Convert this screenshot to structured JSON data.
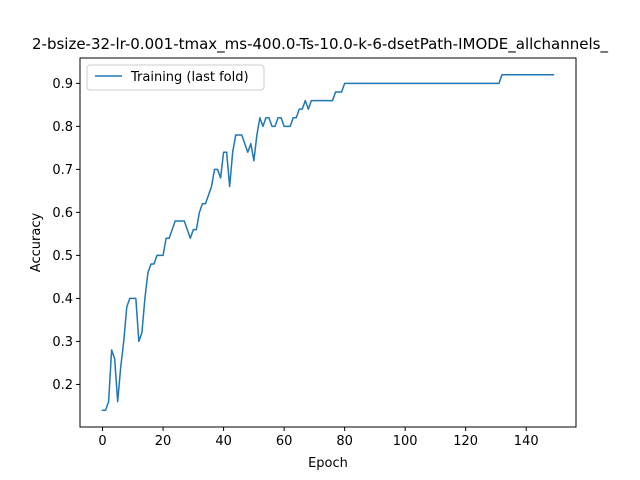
{
  "chart_data": {
    "type": "line",
    "title": "2-bsize-32-lr-0.001-tmax_ms-400.0-Ts-10.0-k-6-dsetPath-IMODE_allchannels_",
    "xlabel": "Epoch",
    "ylabel": "Accuracy",
    "xlim": [
      -7.45,
      156.45
    ],
    "ylim": [
      0.101,
      0.959
    ],
    "xticks": [
      0,
      20,
      40,
      60,
      80,
      100,
      120,
      140
    ],
    "yticks": [
      0.2,
      0.3,
      0.4,
      0.5,
      0.6,
      0.7,
      0.8,
      0.9
    ],
    "grid": false,
    "legend_position": "upper-left",
    "series": [
      {
        "name": "Training (last fold)",
        "color": "#1f77b4",
        "x": [
          0,
          1,
          2,
          3,
          4,
          5,
          6,
          7,
          8,
          9,
          10,
          11,
          12,
          13,
          14,
          15,
          16,
          17,
          18,
          19,
          20,
          21,
          22,
          23,
          24,
          25,
          26,
          27,
          28,
          29,
          30,
          31,
          32,
          33,
          34,
          35,
          36,
          37,
          38,
          39,
          40,
          41,
          42,
          43,
          44,
          45,
          46,
          47,
          48,
          49,
          50,
          51,
          52,
          53,
          54,
          55,
          56,
          57,
          58,
          59,
          60,
          61,
          62,
          63,
          64,
          65,
          66,
          67,
          68,
          69,
          70,
          71,
          72,
          73,
          74,
          75,
          76,
          77,
          78,
          79,
          80,
          81,
          82,
          83,
          84,
          85,
          86,
          87,
          88,
          89,
          90,
          91,
          92,
          93,
          94,
          95,
          96,
          97,
          98,
          99,
          100,
          101,
          102,
          103,
          104,
          105,
          106,
          107,
          108,
          109,
          110,
          111,
          112,
          113,
          114,
          115,
          116,
          117,
          118,
          119,
          120,
          121,
          122,
          123,
          124,
          125,
          126,
          127,
          128,
          129,
          130,
          131,
          132,
          133,
          134,
          135,
          136,
          137,
          138,
          139,
          140,
          141,
          142,
          143,
          144,
          145,
          146,
          147,
          148,
          149
        ],
        "y": [
          0.14,
          0.14,
          0.16,
          0.28,
          0.26,
          0.16,
          0.24,
          0.3,
          0.38,
          0.4,
          0.4,
          0.4,
          0.3,
          0.32,
          0.4,
          0.46,
          0.48,
          0.48,
          0.5,
          0.5,
          0.5,
          0.54,
          0.54,
          0.56,
          0.58,
          0.58,
          0.58,
          0.58,
          0.56,
          0.54,
          0.56,
          0.56,
          0.6,
          0.62,
          0.62,
          0.64,
          0.66,
          0.7,
          0.7,
          0.68,
          0.74,
          0.74,
          0.66,
          0.74,
          0.78,
          0.78,
          0.78,
          0.76,
          0.74,
          0.76,
          0.72,
          0.78,
          0.82,
          0.8,
          0.82,
          0.82,
          0.8,
          0.8,
          0.82,
          0.82,
          0.8,
          0.8,
          0.8,
          0.82,
          0.82,
          0.84,
          0.84,
          0.86,
          0.84,
          0.86,
          0.86,
          0.86,
          0.86,
          0.86,
          0.86,
          0.86,
          0.86,
          0.88,
          0.88,
          0.88,
          0.9,
          0.9,
          0.9,
          0.9,
          0.9,
          0.9,
          0.9,
          0.9,
          0.9,
          0.9,
          0.9,
          0.9,
          0.9,
          0.9,
          0.9,
          0.9,
          0.9,
          0.9,
          0.9,
          0.9,
          0.9,
          0.9,
          0.9,
          0.9,
          0.9,
          0.9,
          0.9,
          0.9,
          0.9,
          0.9,
          0.9,
          0.9,
          0.9,
          0.9,
          0.9,
          0.9,
          0.9,
          0.9,
          0.9,
          0.9,
          0.9,
          0.9,
          0.9,
          0.9,
          0.9,
          0.9,
          0.9,
          0.9,
          0.9,
          0.9,
          0.9,
          0.9,
          0.92,
          0.92,
          0.92,
          0.92,
          0.92,
          0.92,
          0.92,
          0.92,
          0.92,
          0.92,
          0.92,
          0.92,
          0.92,
          0.92,
          0.92,
          0.92,
          0.92,
          0.92
        ]
      }
    ]
  }
}
